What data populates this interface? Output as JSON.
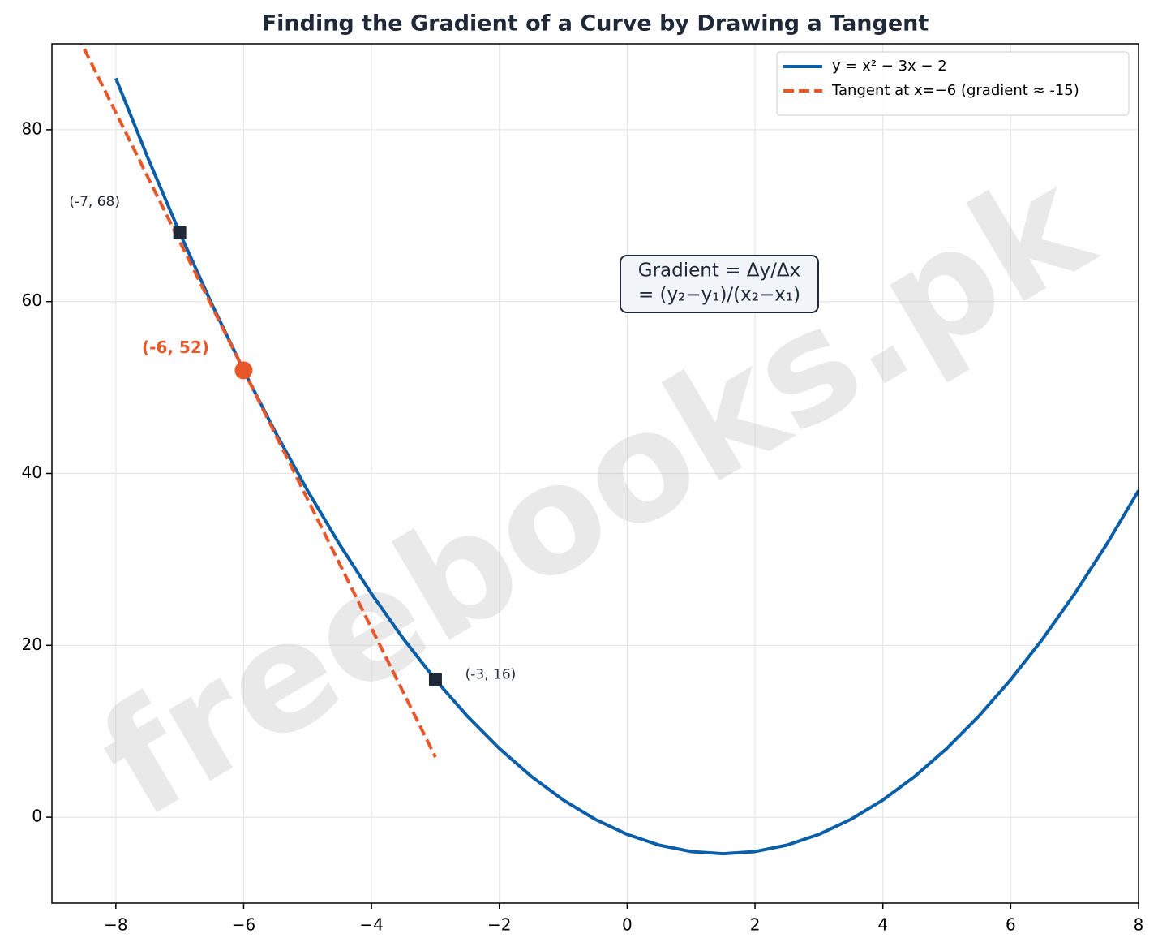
{
  "chart_data": {
    "type": "line",
    "title": "Finding the Gradient of a Curve by Drawing a Tangent",
    "watermark": "freebooks.pk",
    "xlim": [
      -9,
      8
    ],
    "ylim": [
      -10,
      90
    ],
    "xticks": [
      {
        "value": -8,
        "label": "−8"
      },
      {
        "value": -6,
        "label": "−6"
      },
      {
        "value": -4,
        "label": "−4"
      },
      {
        "value": -2,
        "label": "−2"
      },
      0,
      2,
      4,
      6,
      8
    ],
    "yticks": [
      0,
      20,
      40,
      60,
      80
    ],
    "grid": true,
    "legend": "upper right",
    "series": [
      {
        "name": "y = x² − 3x − 2",
        "color": "#0b5ea8",
        "style": "solid",
        "x": [
          -8,
          -7.5,
          -7,
          -6.5,
          -6,
          -5.5,
          -5,
          -4.5,
          -4,
          -3.5,
          -3,
          -2.5,
          -2,
          -1.5,
          -1,
          -0.5,
          0,
          0.5,
          1,
          1.5,
          2,
          2.5,
          3,
          3.5,
          4,
          4.5,
          5,
          5.5,
          6,
          6.5,
          7,
          7.5,
          8
        ],
        "values": [
          86,
          76.75,
          68,
          59.75,
          52,
          44.75,
          38,
          31.75,
          26,
          20.75,
          16,
          11.75,
          8,
          4.75,
          2,
          -0.25,
          -2,
          -3.25,
          -4,
          -4.25,
          -4,
          -3.25,
          -2,
          -0.25,
          2,
          4.75,
          8,
          11.75,
          16,
          20.75,
          26,
          31.75,
          38
        ]
      },
      {
        "name": "Tangent at x=−6 (gradient ≈ -15)",
        "color": "#e8572a",
        "style": "dashed",
        "x": [
          -8.6,
          -3
        ],
        "values": [
          91,
          7
        ]
      }
    ],
    "points": [
      {
        "x": -7,
        "y": 68,
        "label": "(-7, 68)",
        "marker": "square",
        "color": "#1f2937"
      },
      {
        "x": -6,
        "y": 52,
        "label": "(-6, 52)",
        "marker": "circle",
        "color": "#e8572a"
      },
      {
        "x": -3,
        "y": 16,
        "label": "(-3, 16)",
        "marker": "square",
        "color": "#1f2937"
      }
    ],
    "annotation": [
      "Gradient = Δy/Δx",
      "= (y₂−y₁)/(x₂−x₁)"
    ]
  }
}
